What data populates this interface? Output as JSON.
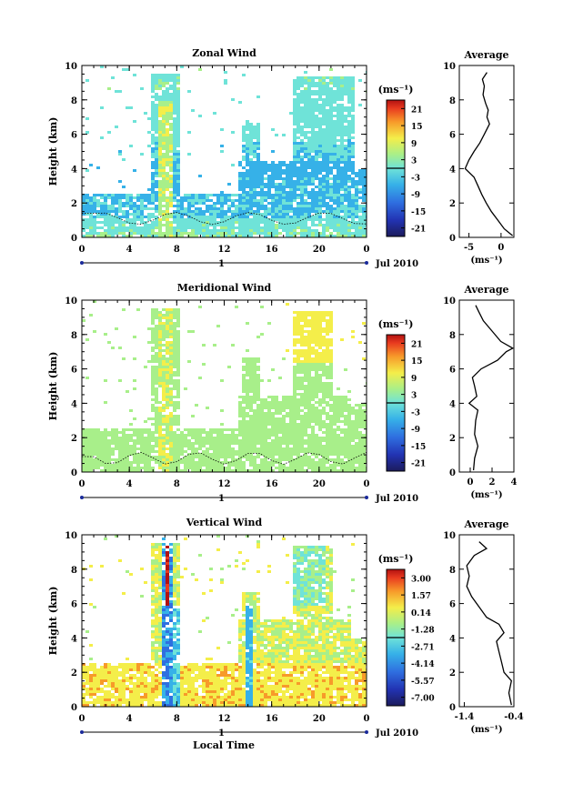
{
  "figure": {
    "xlabel_bottom": "Local Time",
    "date_label": "Jul 2010",
    "day_label": "1"
  },
  "chart_data": [
    {
      "type": "heatmap",
      "id": "zonal",
      "title": "Zonal Wind",
      "ylabel": "Height (km)",
      "xlim": [
        0,
        24
      ],
      "ylim": [
        0,
        10
      ],
      "xticks": [
        "0",
        "4",
        "8",
        "12",
        "16",
        "20",
        "0"
      ],
      "yticks": [
        "0",
        "2",
        "4",
        "6",
        "8",
        "10"
      ],
      "colorbar": {
        "unit": "(ms⁻¹)",
        "ticks": [
          "21",
          "15",
          "9",
          "3",
          "-3",
          "-9",
          "-15",
          "-21"
        ],
        "range": [
          -24,
          24
        ]
      },
      "average": {
        "title": "Average",
        "xlabel": "(ms⁻¹)",
        "xlim": [
          -6.5,
          2
        ],
        "xticks": [
          "-5",
          "0"
        ],
        "profile": [
          [
            1.8,
            0.1
          ],
          [
            0.5,
            0.5
          ],
          [
            -0.5,
            1
          ],
          [
            -1.5,
            1.5
          ],
          [
            -2.3,
            2
          ],
          [
            -3,
            2.5
          ],
          [
            -3.6,
            3
          ],
          [
            -4.2,
            3.5
          ],
          [
            -5.6,
            4
          ],
          [
            -5.0,
            4.5
          ],
          [
            -4.2,
            5
          ],
          [
            -3.3,
            5.5
          ],
          [
            -2.6,
            6
          ],
          [
            -1.8,
            6.6
          ],
          [
            -2.2,
            7
          ],
          [
            -2.0,
            7.4
          ],
          [
            -2.4,
            7.8
          ],
          [
            -2.8,
            8.3
          ],
          [
            -2.6,
            8.8
          ],
          [
            -2.9,
            9.2
          ],
          [
            -2.2,
            9.6
          ]
        ]
      }
    },
    {
      "type": "heatmap",
      "id": "meridional",
      "title": "Meridional Wind",
      "ylabel": "Height (km)",
      "xlim": [
        0,
        24
      ],
      "ylim": [
        0,
        10
      ],
      "xticks": [
        "0",
        "4",
        "8",
        "12",
        "16",
        "20",
        "0"
      ],
      "yticks": [
        "0",
        "2",
        "4",
        "6",
        "8",
        "10"
      ],
      "colorbar": {
        "unit": "(ms⁻¹)",
        "ticks": [
          "21",
          "15",
          "9",
          "3",
          "-3",
          "-9",
          "-15",
          "-21"
        ],
        "range": [
          -24,
          24
        ]
      },
      "average": {
        "title": "Average",
        "xlabel": "(ms⁻¹)",
        "xlim": [
          -1,
          4
        ],
        "xticks": [
          "0",
          "2",
          "4"
        ],
        "profile": [
          [
            0.3,
            0.1
          ],
          [
            0.4,
            0.8
          ],
          [
            0.7,
            1.5
          ],
          [
            0.4,
            2.2
          ],
          [
            0.5,
            3.0
          ],
          [
            0.7,
            3.6
          ],
          [
            -0.1,
            4.0
          ],
          [
            0.6,
            4.4
          ],
          [
            0.4,
            5.0
          ],
          [
            0.2,
            5.5
          ],
          [
            1.0,
            6.0
          ],
          [
            2.5,
            6.5
          ],
          [
            3.3,
            7.0
          ],
          [
            3.9,
            7.2
          ],
          [
            2.8,
            7.6
          ],
          [
            2.0,
            8.2
          ],
          [
            1.2,
            8.8
          ],
          [
            0.8,
            9.3
          ],
          [
            0.5,
            9.7
          ]
        ]
      }
    },
    {
      "type": "heatmap",
      "id": "vertical",
      "title": "Vertical Wind",
      "ylabel": "Height (km)",
      "xlabel": "Local Time",
      "xlim": [
        0,
        24
      ],
      "ylim": [
        0,
        10
      ],
      "xticks": [
        "0",
        "4",
        "8",
        "12",
        "16",
        "20",
        "0"
      ],
      "yticks": [
        "0",
        "2",
        "4",
        "6",
        "8",
        "10"
      ],
      "colorbar": {
        "unit": "(ms⁻¹)",
        "ticks": [
          "3.00",
          "1.57",
          "0.14",
          "-1.28",
          "-2.71",
          "-4.14",
          "-5.57",
          "-7.00"
        ],
        "range": [
          -8,
          4
        ]
      },
      "average": {
        "title": "Average",
        "xlabel": "(ms⁻¹)",
        "xlim": [
          -1.5,
          -0.4
        ],
        "xticks": [
          "-1.4",
          "-0.4"
        ],
        "profile": [
          [
            -0.45,
            0.1
          ],
          [
            -0.5,
            0.8
          ],
          [
            -0.45,
            1.5
          ],
          [
            -0.6,
            2.0
          ],
          [
            -0.65,
            2.6
          ],
          [
            -0.7,
            3.2
          ],
          [
            -0.75,
            3.8
          ],
          [
            -0.6,
            4.3
          ],
          [
            -0.7,
            4.8
          ],
          [
            -0.95,
            5.2
          ],
          [
            -1.1,
            5.8
          ],
          [
            -1.25,
            6.4
          ],
          [
            -1.35,
            7.0
          ],
          [
            -1.3,
            7.6
          ],
          [
            -1.35,
            8.2
          ],
          [
            -1.2,
            8.8
          ],
          [
            -0.95,
            9.2
          ],
          [
            -1.1,
            9.6
          ]
        ]
      }
    }
  ]
}
